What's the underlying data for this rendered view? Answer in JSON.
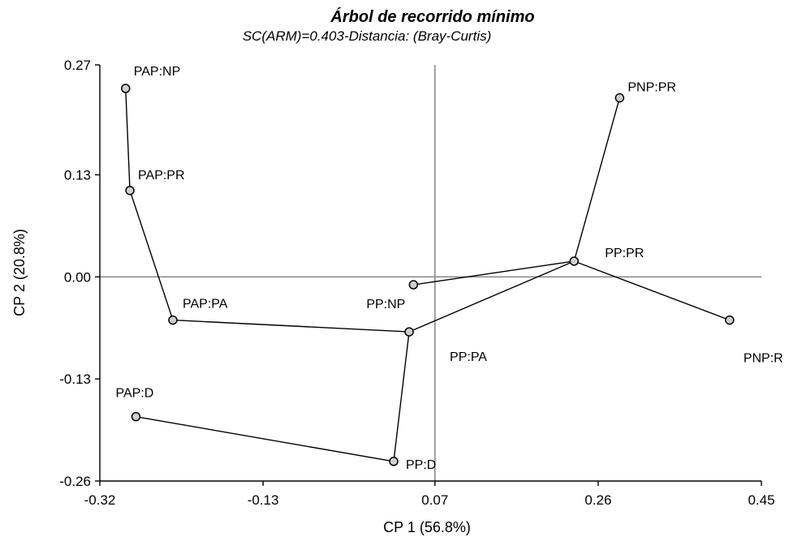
{
  "chart_data": {
    "type": "scatter",
    "title": "Árbol de recorrido mínimo",
    "subtitle": "SC(ARM)=0.403-Distancia: (Bray-Curtis)",
    "xlabel": "CP 1 (56.8%)",
    "ylabel": "CP 2 (20.8%)",
    "xlim": [
      -0.32,
      0.45
    ],
    "ylim": [
      -0.26,
      0.27
    ],
    "xticks": [
      -0.32,
      -0.13,
      0.07,
      0.26,
      0.45
    ],
    "xtick_labels": [
      "-0.32",
      "-0.13",
      "0.07",
      "0.26",
      "0.45"
    ],
    "yticks": [
      -0.26,
      -0.13,
      0.0,
      0.13,
      0.27
    ],
    "ytick_labels": [
      "-0.26",
      "-0.13",
      "0.00",
      "0.13",
      "0.27"
    ],
    "grid": false,
    "reference_lines": {
      "x": 0.07,
      "y": 0.0
    },
    "points": [
      {
        "label": "PAP:NP",
        "x": -0.29,
        "y": 0.24
      },
      {
        "label": "PAP:PR",
        "x": -0.285,
        "y": 0.11
      },
      {
        "label": "PAP:PA",
        "x": -0.235,
        "y": -0.055
      },
      {
        "label": "PAP:D",
        "x": -0.278,
        "y": -0.178
      },
      {
        "label": "PP:NP",
        "x": 0.045,
        "y": -0.01
      },
      {
        "label": "PP:PA",
        "x": 0.04,
        "y": -0.07
      },
      {
        "label": "PP:D",
        "x": 0.022,
        "y": -0.235
      },
      {
        "label": "PP:PR",
        "x": 0.232,
        "y": 0.02
      },
      {
        "label": "PNP:PR",
        "x": 0.285,
        "y": 0.228
      },
      {
        "label": "PNP:R",
        "x": 0.413,
        "y": -0.055
      }
    ],
    "edges": [
      [
        "PAP:NP",
        "PAP:PR"
      ],
      [
        "PAP:PR",
        "PAP:PA"
      ],
      [
        "PAP:PA",
        "PP:PA"
      ],
      [
        "PP:PA",
        "PP:D"
      ],
      [
        "PP:D",
        "PAP:D"
      ],
      [
        "PP:PA",
        "PP:PR"
      ],
      [
        "PP:NP",
        "PP:PR"
      ],
      [
        "PP:PR",
        "PNP:PR"
      ],
      [
        "PP:PR",
        "PNP:R"
      ]
    ]
  }
}
